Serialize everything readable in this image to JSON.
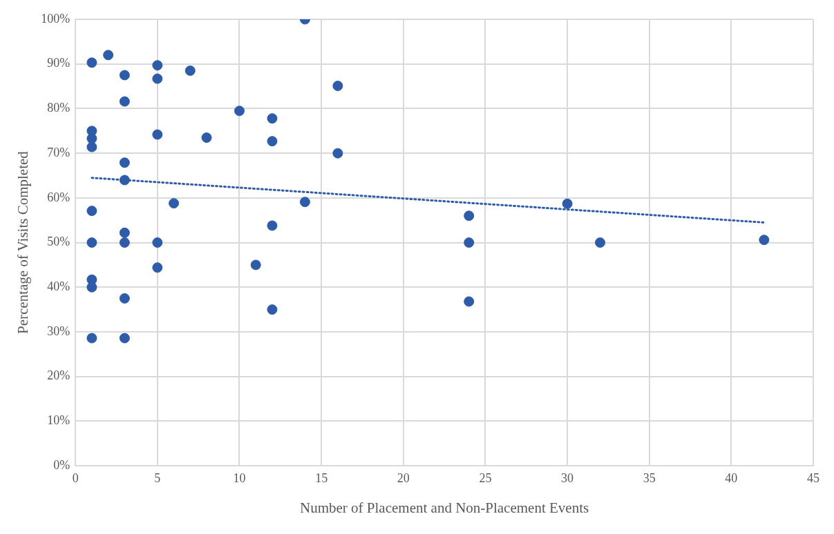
{
  "chart_data": {
    "type": "scatter",
    "xlabel": "Number of Placement and Non-Placement Events",
    "ylabel": "Percentage of Visits Completed",
    "xlim": [
      0,
      45
    ],
    "xticks": [
      0,
      5,
      10,
      15,
      20,
      25,
      30,
      35,
      40,
      45
    ],
    "ylim": [
      0,
      100
    ],
    "yticks": [
      {
        "value": 0,
        "label": "0%"
      },
      {
        "value": 10,
        "label": "10%"
      },
      {
        "value": 20,
        "label": "20%"
      },
      {
        "value": 30,
        "label": "30%"
      },
      {
        "value": 40,
        "label": "40%"
      },
      {
        "value": 50,
        "label": "50%"
      },
      {
        "value": 60,
        "label": "60%"
      },
      {
        "value": 70,
        "label": "70%"
      },
      {
        "value": 80,
        "label": "80%"
      },
      {
        "value": 90,
        "label": "90%"
      },
      {
        "value": 100,
        "label": "100%"
      }
    ],
    "grid": true,
    "legend": false,
    "marker": "circle",
    "series": [
      {
        "color": "#2e5ca8",
        "x": [
          1,
          1,
          1,
          1,
          1,
          1,
          1,
          1,
          1,
          2,
          3,
          3,
          3,
          3,
          3,
          3,
          3,
          3,
          5,
          5,
          5,
          5,
          5,
          6,
          7,
          8,
          10,
          11,
          12,
          12,
          12,
          12,
          14,
          14,
          16,
          16,
          24,
          24,
          24,
          30,
          32,
          42
        ],
        "values": [
          90.3,
          75,
          73.3,
          71.4,
          57.1,
          50,
          41.7,
          40,
          28.6,
          92,
          87.5,
          81.6,
          67.9,
          64,
          52.2,
          50,
          37.5,
          28.6,
          89.7,
          86.7,
          74.2,
          50,
          44.4,
          58.8,
          88.5,
          73.5,
          79.5,
          45,
          77.8,
          72.7,
          53.8,
          35,
          100,
          59.1,
          85.1,
          70,
          56,
          50,
          36.8,
          58.7,
          50,
          50.6
        ]
      },
      {
        "type": "line",
        "color": "#2e5ca8",
        "line_style": "dotted",
        "marker": "none",
        "x": [
          1,
          42
        ],
        "values": [
          64.5,
          54.5
        ]
      }
    ]
  }
}
